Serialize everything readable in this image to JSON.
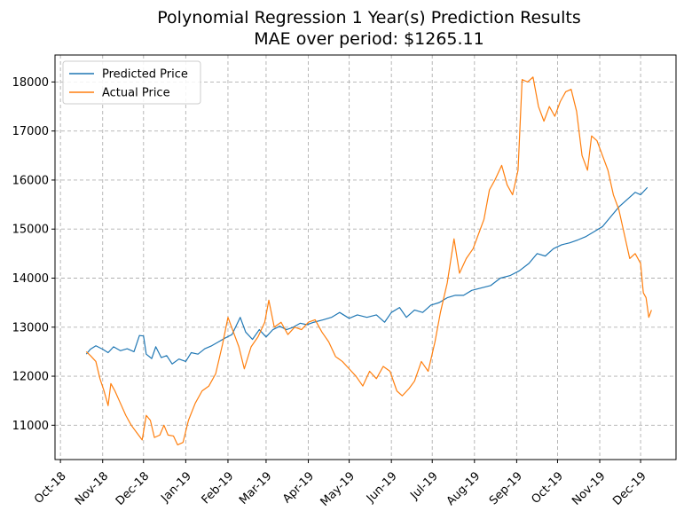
{
  "chart_data": {
    "type": "line",
    "title": "Polynomial Regression 1 Year(s) Prediction Results",
    "subtitle": "MAE over period: $1265.11",
    "xlabel": "",
    "ylabel": "",
    "grid": true,
    "legend_position": "top-left",
    "x_ticks": [
      "Oct-18",
      "Nov-18",
      "Dec-18",
      "Jan-19",
      "Feb-19",
      "Mar-19",
      "Apr-19",
      "May-19",
      "Jun-19",
      "Jul-19",
      "Aug-19",
      "Sep-19",
      "Oct-19",
      "Nov-19",
      "Dec-19"
    ],
    "y_ticks": [
      11000,
      12000,
      13000,
      14000,
      15000,
      16000,
      17000,
      18000
    ],
    "xlim": [
      "2018-09-27",
      "2019-12-27"
    ],
    "ylim": [
      10300,
      18550
    ],
    "series": [
      {
        "name": "Predicted Price",
        "color": "#1f77b4",
        "points": [
          [
            "2018-10-20",
            12450
          ],
          [
            "2018-10-23",
            12550
          ],
          [
            "2018-10-27",
            12620
          ],
          [
            "2018-11-01",
            12550
          ],
          [
            "2018-11-05",
            12480
          ],
          [
            "2018-11-09",
            12600
          ],
          [
            "2018-11-14",
            12520
          ],
          [
            "2018-11-19",
            12560
          ],
          [
            "2018-11-24",
            12500
          ],
          [
            "2018-11-28",
            12830
          ],
          [
            "2018-12-01",
            12820
          ],
          [
            "2018-12-03",
            12450
          ],
          [
            "2018-12-07",
            12360
          ],
          [
            "2018-12-10",
            12600
          ],
          [
            "2018-12-14",
            12380
          ],
          [
            "2018-12-18",
            12420
          ],
          [
            "2018-12-22",
            12250
          ],
          [
            "2018-12-27",
            12350
          ],
          [
            "2019-01-01",
            12300
          ],
          [
            "2019-01-05",
            12480
          ],
          [
            "2019-01-10",
            12450
          ],
          [
            "2019-01-15",
            12560
          ],
          [
            "2019-01-20",
            12620
          ],
          [
            "2019-01-25",
            12700
          ],
          [
            "2019-01-30",
            12780
          ],
          [
            "2019-02-04",
            12850
          ],
          [
            "2019-02-10",
            13200
          ],
          [
            "2019-02-14",
            12900
          ],
          [
            "2019-02-19",
            12750
          ],
          [
            "2019-02-24",
            12950
          ],
          [
            "2019-03-01",
            12800
          ],
          [
            "2019-03-06",
            12950
          ],
          [
            "2019-03-11",
            13020
          ],
          [
            "2019-03-16",
            12950
          ],
          [
            "2019-03-21",
            13000
          ],
          [
            "2019-03-26",
            13080
          ],
          [
            "2019-03-31",
            13050
          ],
          [
            "2019-04-05",
            13100
          ],
          [
            "2019-04-12",
            13150
          ],
          [
            "2019-04-18",
            13200
          ],
          [
            "2019-04-24",
            13300
          ],
          [
            "2019-05-01",
            13180
          ],
          [
            "2019-05-07",
            13250
          ],
          [
            "2019-05-14",
            13200
          ],
          [
            "2019-05-21",
            13250
          ],
          [
            "2019-05-27",
            13100
          ],
          [
            "2019-06-01",
            13300
          ],
          [
            "2019-06-07",
            13400
          ],
          [
            "2019-06-12",
            13200
          ],
          [
            "2019-06-18",
            13350
          ],
          [
            "2019-06-24",
            13300
          ],
          [
            "2019-06-30",
            13450
          ],
          [
            "2019-07-06",
            13500
          ],
          [
            "2019-07-12",
            13600
          ],
          [
            "2019-07-18",
            13650
          ],
          [
            "2019-07-24",
            13650
          ],
          [
            "2019-07-30",
            13750
          ],
          [
            "2019-08-06",
            13800
          ],
          [
            "2019-08-13",
            13850
          ],
          [
            "2019-08-20",
            14000
          ],
          [
            "2019-08-27",
            14050
          ],
          [
            "2019-09-03",
            14150
          ],
          [
            "2019-09-10",
            14300
          ],
          [
            "2019-09-16",
            14500
          ],
          [
            "2019-09-22",
            14450
          ],
          [
            "2019-09-28",
            14600
          ],
          [
            "2019-10-04",
            14680
          ],
          [
            "2019-10-10",
            14720
          ],
          [
            "2019-10-16",
            14780
          ],
          [
            "2019-10-22",
            14850
          ],
          [
            "2019-10-28",
            14950
          ],
          [
            "2019-11-03",
            15050
          ],
          [
            "2019-11-09",
            15250
          ],
          [
            "2019-11-15",
            15450
          ],
          [
            "2019-11-21",
            15600
          ],
          [
            "2019-11-27",
            15750
          ],
          [
            "2019-12-01",
            15700
          ],
          [
            "2019-12-06",
            15850
          ]
        ]
      },
      {
        "name": "Actual Price",
        "color": "#ff7f0e",
        "points": [
          [
            "2018-10-20",
            12500
          ],
          [
            "2018-10-23",
            12420
          ],
          [
            "2018-10-27",
            12300
          ],
          [
            "2018-10-30",
            11950
          ],
          [
            "2018-11-02",
            11700
          ],
          [
            "2018-11-05",
            11400
          ],
          [
            "2018-11-07",
            11850
          ],
          [
            "2018-11-10",
            11700
          ],
          [
            "2018-11-14",
            11450
          ],
          [
            "2018-11-18",
            11200
          ],
          [
            "2018-11-22",
            11000
          ],
          [
            "2018-11-26",
            10850
          ],
          [
            "2018-11-30",
            10700
          ],
          [
            "2018-12-03",
            11200
          ],
          [
            "2018-12-06",
            11100
          ],
          [
            "2018-12-09",
            10750
          ],
          [
            "2018-12-13",
            10800
          ],
          [
            "2018-12-16",
            11000
          ],
          [
            "2018-12-19",
            10800
          ],
          [
            "2018-12-23",
            10780
          ],
          [
            "2018-12-26",
            10600
          ],
          [
            "2018-12-30",
            10650
          ],
          [
            "2019-01-03",
            11100
          ],
          [
            "2019-01-08",
            11450
          ],
          [
            "2019-01-13",
            11700
          ],
          [
            "2019-01-18",
            11800
          ],
          [
            "2019-01-23",
            12050
          ],
          [
            "2019-01-28",
            12650
          ],
          [
            "2019-02-01",
            13200
          ],
          [
            "2019-02-05",
            12900
          ],
          [
            "2019-02-09",
            12600
          ],
          [
            "2019-02-13",
            12150
          ],
          [
            "2019-02-18",
            12600
          ],
          [
            "2019-02-23",
            12800
          ],
          [
            "2019-02-28",
            13100
          ],
          [
            "2019-03-03",
            13550
          ],
          [
            "2019-03-07",
            13000
          ],
          [
            "2019-03-12",
            13100
          ],
          [
            "2019-03-17",
            12850
          ],
          [
            "2019-03-22",
            13000
          ],
          [
            "2019-03-27",
            12950
          ],
          [
            "2019-04-01",
            13100
          ],
          [
            "2019-04-06",
            13150
          ],
          [
            "2019-04-11",
            12900
          ],
          [
            "2019-04-16",
            12700
          ],
          [
            "2019-04-21",
            12400
          ],
          [
            "2019-04-26",
            12300
          ],
          [
            "2019-05-01",
            12150
          ],
          [
            "2019-05-06",
            12000
          ],
          [
            "2019-05-11",
            11800
          ],
          [
            "2019-05-16",
            12100
          ],
          [
            "2019-05-21",
            11950
          ],
          [
            "2019-05-26",
            12200
          ],
          [
            "2019-05-31",
            12100
          ],
          [
            "2019-06-05",
            11700
          ],
          [
            "2019-06-09",
            11600
          ],
          [
            "2019-06-14",
            11750
          ],
          [
            "2019-06-18",
            11900
          ],
          [
            "2019-06-23",
            12300
          ],
          [
            "2019-06-28",
            12100
          ],
          [
            "2019-07-03",
            12700
          ],
          [
            "2019-07-07",
            13300
          ],
          [
            "2019-07-12",
            13900
          ],
          [
            "2019-07-17",
            14800
          ],
          [
            "2019-07-21",
            14100
          ],
          [
            "2019-07-26",
            14400
          ],
          [
            "2019-07-31",
            14600
          ],
          [
            "2019-08-04",
            14900
          ],
          [
            "2019-08-08",
            15200
          ],
          [
            "2019-08-12",
            15800
          ],
          [
            "2019-08-16",
            16000
          ],
          [
            "2019-08-21",
            16300
          ],
          [
            "2019-08-25",
            15900
          ],
          [
            "2019-08-29",
            15700
          ],
          [
            "2019-09-02",
            16200
          ],
          [
            "2019-09-05",
            18050
          ],
          [
            "2019-09-09",
            18000
          ],
          [
            "2019-09-13",
            18100
          ],
          [
            "2019-09-17",
            17500
          ],
          [
            "2019-09-21",
            17200
          ],
          [
            "2019-09-25",
            17500
          ],
          [
            "2019-09-29",
            17300
          ],
          [
            "2019-10-03",
            17600
          ],
          [
            "2019-10-07",
            17800
          ],
          [
            "2019-10-11",
            17850
          ],
          [
            "2019-10-15",
            17400
          ],
          [
            "2019-10-19",
            16500
          ],
          [
            "2019-10-23",
            16200
          ],
          [
            "2019-10-26",
            16900
          ],
          [
            "2019-10-30",
            16800
          ],
          [
            "2019-11-03",
            16500
          ],
          [
            "2019-11-07",
            16200
          ],
          [
            "2019-11-11",
            15700
          ],
          [
            "2019-11-15",
            15400
          ],
          [
            "2019-11-19",
            14900
          ],
          [
            "2019-11-23",
            14400
          ],
          [
            "2019-11-27",
            14500
          ],
          [
            "2019-12-01",
            14300
          ],
          [
            "2019-12-03",
            13700
          ],
          [
            "2019-12-05",
            13600
          ],
          [
            "2019-12-07",
            13200
          ],
          [
            "2019-12-09",
            13350
          ]
        ]
      }
    ]
  }
}
